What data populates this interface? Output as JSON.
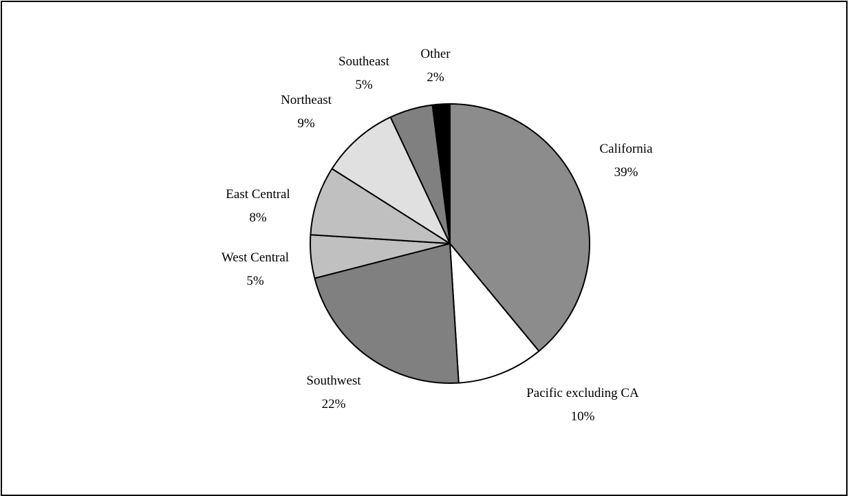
{
  "chart_data": {
    "type": "pie",
    "title": "",
    "categories": [
      "California",
      "Pacific excluding CA",
      "Southwest",
      "West Central",
      "East Central",
      "Northeast",
      "Southeast",
      "Other"
    ],
    "values": [
      39,
      10,
      22,
      5,
      8,
      9,
      5,
      2
    ],
    "value_labels": [
      "39%",
      "10%",
      "22%",
      "5%",
      "8%",
      "9%",
      "5%",
      "2%"
    ],
    "colors": [
      "#8c8c8c",
      "#ffffff",
      "#808080",
      "#c0c0c0",
      "#c0c0c0",
      "#e0e0e0",
      "#808080",
      "#000000"
    ],
    "start": "12 o'clock",
    "direction": "clockwise",
    "legend": "none"
  }
}
